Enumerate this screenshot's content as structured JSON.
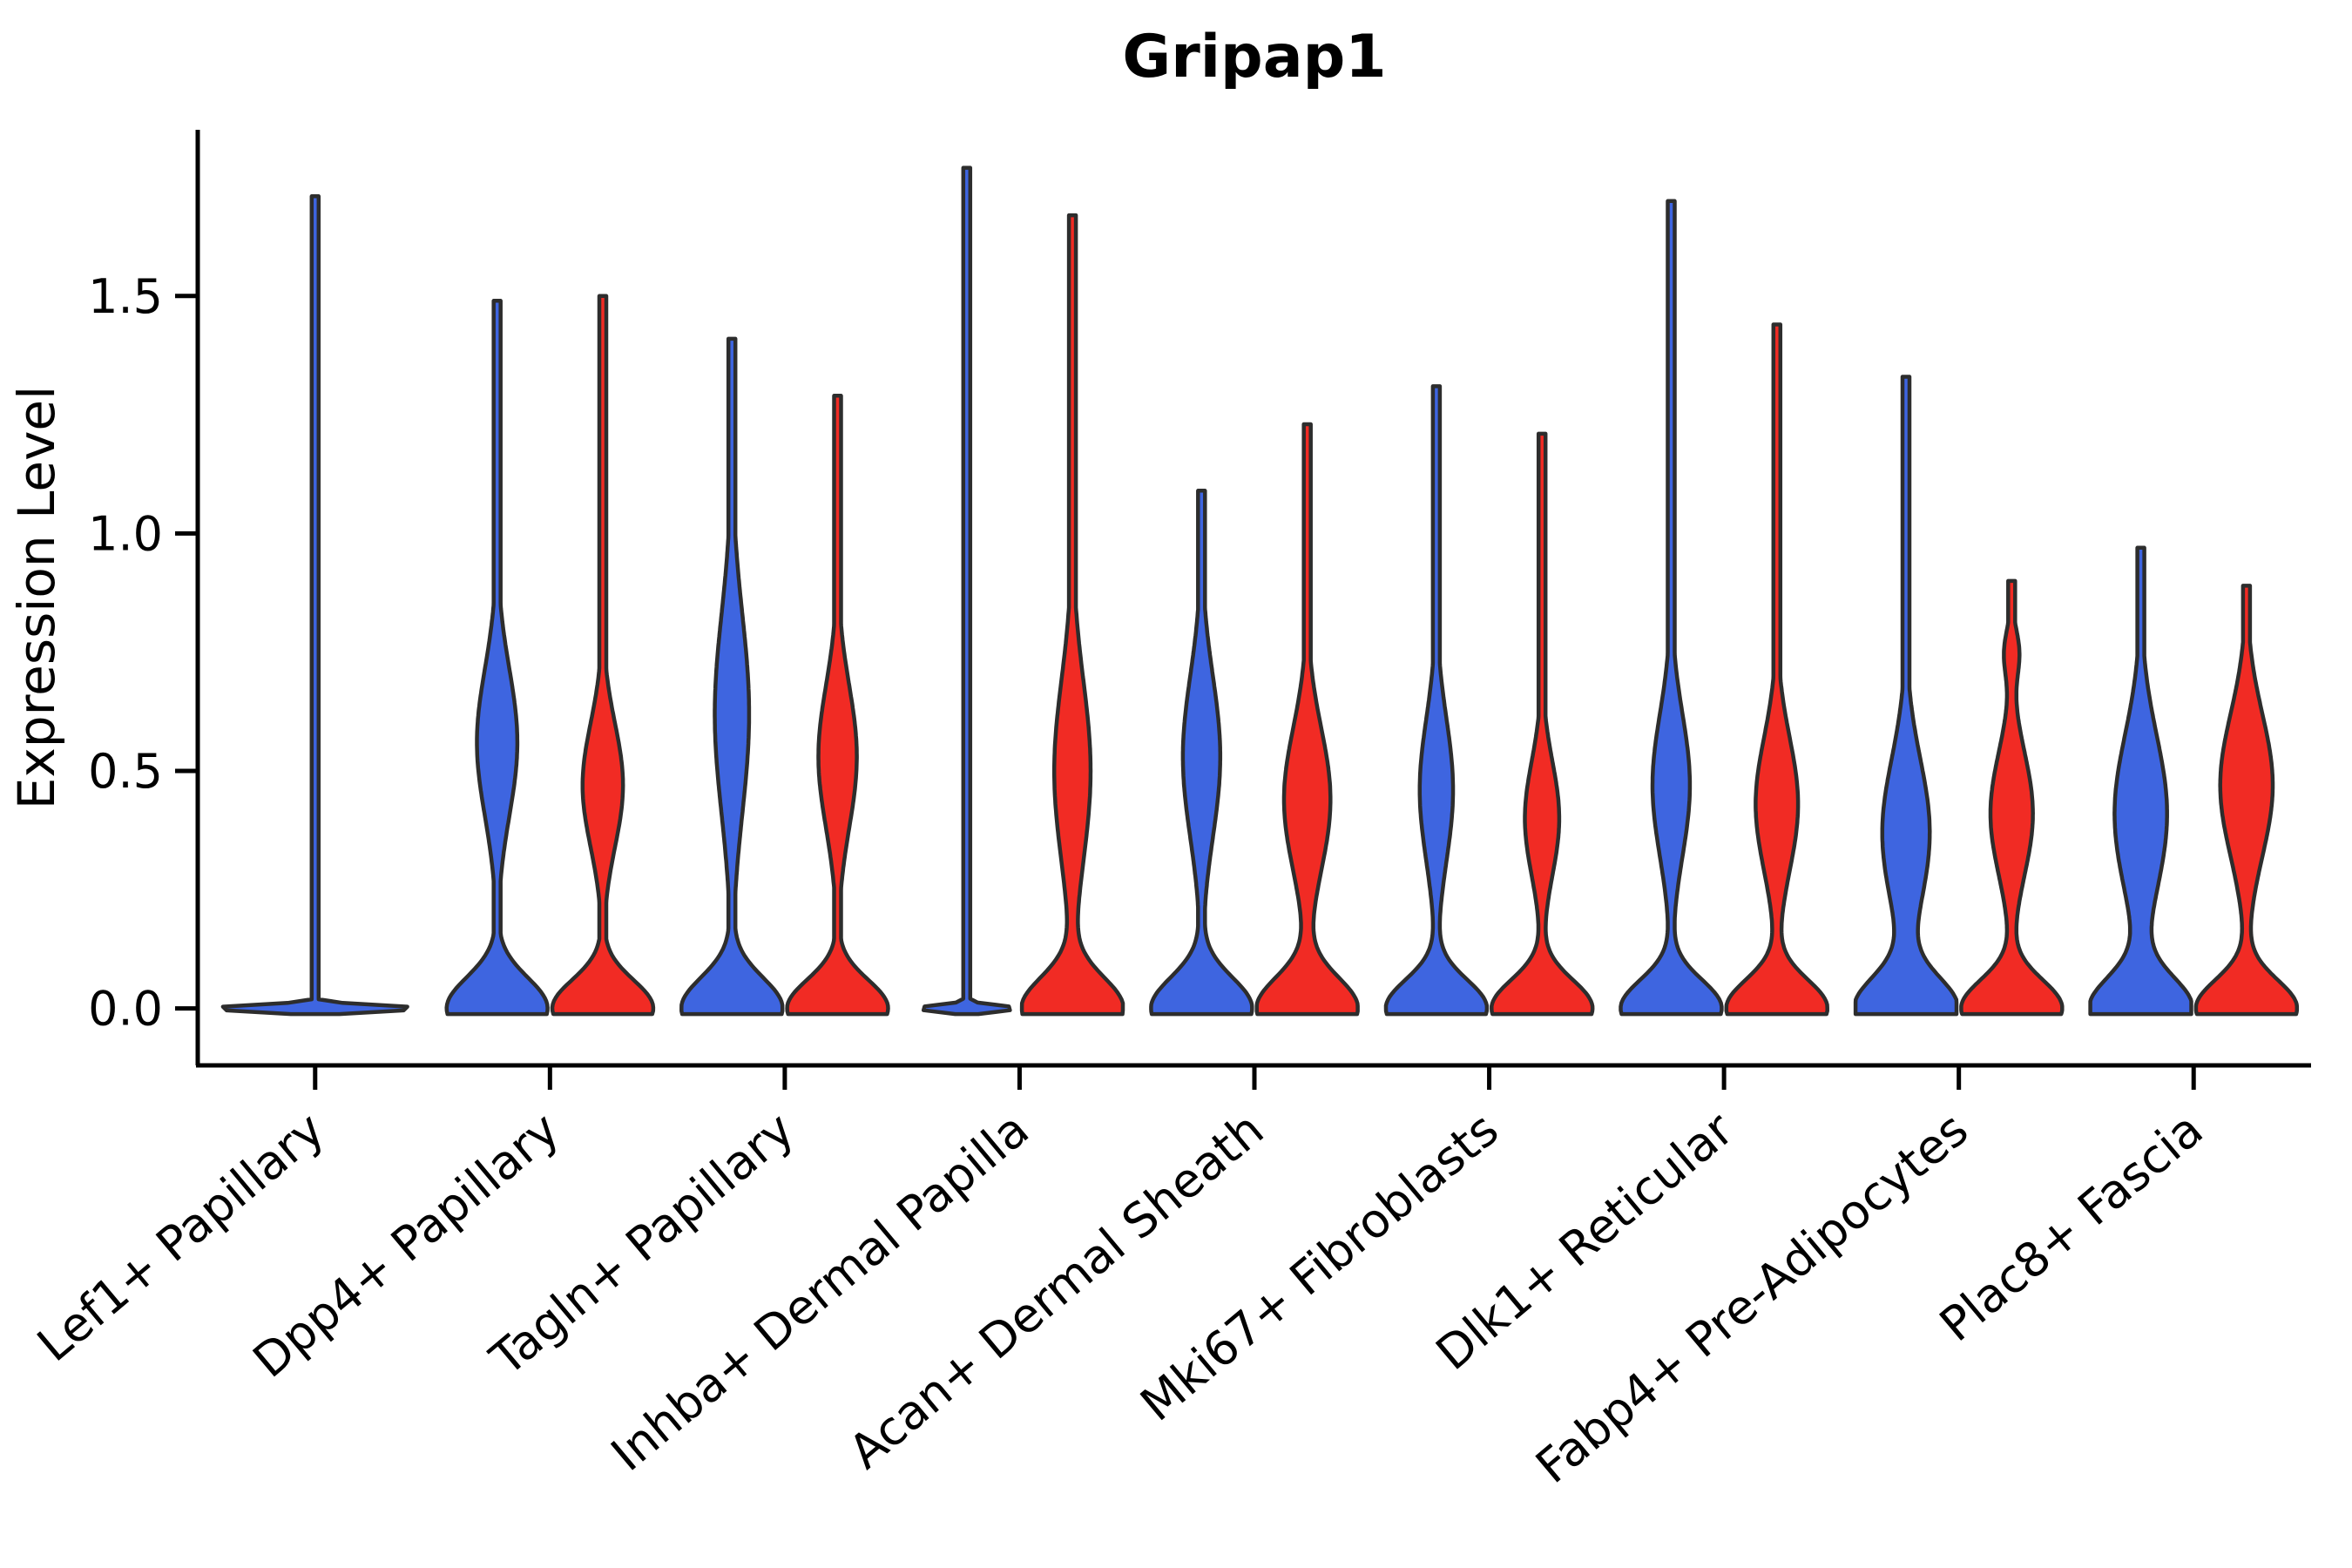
{
  "title": "Gripap1",
  "y_axis": {
    "label": "Expression Level",
    "tick_labels": [
      "0.0",
      "0.5",
      "1.0",
      "1.5"
    ],
    "tick_values": [
      0.0,
      0.5,
      1.0,
      1.5
    ]
  },
  "colors": {
    "blue_fill": "#3e65e0",
    "red_fill": "#f12b24",
    "edge": "#2d2d2d",
    "axis": "#000000"
  },
  "chart_data": {
    "type": "violin",
    "title": "Gripap1",
    "xlabel": "",
    "ylabel": "Expression Level",
    "ylim": [
      -0.12,
      1.85
    ],
    "grid": false,
    "legend": "none",
    "categories": [
      "Lef1+ Papillary",
      "Dpp4+ Papillary",
      "Tagln+ Papillary",
      "Inhba+ Dermal Papilla",
      "Acan+ Dermal Sheath",
      "Mki67+ Fibroblasts",
      "Dlk1+ Reticular",
      "Fabp4+ Pre-Adipocytes",
      "Plac8+ Fascia"
    ],
    "series": [
      {
        "name": "blue",
        "color": "#3e65e0"
      },
      {
        "name": "red",
        "color": "#f12b24"
      }
    ],
    "violins": [
      {
        "category": 0,
        "series": "blue",
        "pos": "full",
        "max": 1.71,
        "flat": true,
        "base_sigma": 0.007,
        "lobe": null
      },
      {
        "category": 1,
        "series": "blue",
        "pos": "left",
        "max": 1.49,
        "flat": false,
        "base_sigma": 0.065,
        "lobe": {
          "c": 0.56,
          "sigma": 0.155,
          "amp": 0.4
        }
      },
      {
        "category": 1,
        "series": "red",
        "pos": "right",
        "max": 1.5,
        "flat": false,
        "base_sigma": 0.06,
        "lobe": {
          "c": 0.47,
          "sigma": 0.13,
          "amp": 0.4
        }
      },
      {
        "category": 2,
        "series": "blue",
        "pos": "left",
        "max": 1.41,
        "flat": false,
        "base_sigma": 0.065,
        "lobe": {
          "c": 0.62,
          "sigma": 0.21,
          "amp": 0.34
        }
      },
      {
        "category": 2,
        "series": "red",
        "pos": "right",
        "max": 1.29,
        "flat": false,
        "base_sigma": 0.06,
        "lobe": {
          "c": 0.53,
          "sigma": 0.15,
          "amp": 0.38
        }
      },
      {
        "category": 3,
        "series": "blue",
        "pos": "left",
        "max": 1.77,
        "flat": true,
        "base_sigma": 0.007,
        "lobe": null
      },
      {
        "category": 3,
        "series": "red",
        "pos": "right",
        "max": 1.67,
        "flat": false,
        "base_sigma": 0.065,
        "lobe": {
          "c": 0.5,
          "sigma": 0.19,
          "amp": 0.36
        }
      },
      {
        "category": 4,
        "series": "blue",
        "pos": "left",
        "max": 1.09,
        "flat": false,
        "base_sigma": 0.065,
        "lobe": {
          "c": 0.53,
          "sigma": 0.17,
          "amp": 0.37
        }
      },
      {
        "category": 4,
        "series": "red",
        "pos": "right",
        "max": 1.23,
        "flat": false,
        "base_sigma": 0.065,
        "lobe": {
          "c": 0.44,
          "sigma": 0.15,
          "amp": 0.46
        }
      },
      {
        "category": 5,
        "series": "blue",
        "pos": "left",
        "max": 1.31,
        "flat": false,
        "base_sigma": 0.06,
        "lobe": {
          "c": 0.46,
          "sigma": 0.15,
          "amp": 0.33
        }
      },
      {
        "category": 5,
        "series": "red",
        "pos": "right",
        "max": 1.21,
        "flat": false,
        "base_sigma": 0.06,
        "lobe": {
          "c": 0.4,
          "sigma": 0.12,
          "amp": 0.34
        }
      },
      {
        "category": 6,
        "series": "blue",
        "pos": "left",
        "max": 1.7,
        "flat": false,
        "base_sigma": 0.06,
        "lobe": {
          "c": 0.47,
          "sigma": 0.15,
          "amp": 0.37
        }
      },
      {
        "category": 6,
        "series": "red",
        "pos": "right",
        "max": 1.44,
        "flat": false,
        "base_sigma": 0.06,
        "lobe": {
          "c": 0.43,
          "sigma": 0.14,
          "amp": 0.42
        }
      },
      {
        "category": 7,
        "series": "blue",
        "pos": "left",
        "max": 1.33,
        "flat": false,
        "base_sigma": 0.065,
        "lobe": {
          "c": 0.37,
          "sigma": 0.155,
          "amp": 0.47
        }
      },
      {
        "category": 7,
        "series": "red",
        "pos": "right",
        "max": 0.9,
        "flat": false,
        "base_sigma": 0.06,
        "lobe": {
          "c": 0.41,
          "sigma": 0.13,
          "amp": 0.42
        },
        "bulge2": {
          "c": 0.75,
          "sigma": 0.05,
          "amp": 0.14
        }
      },
      {
        "category": 8,
        "series": "blue",
        "pos": "left",
        "max": 0.97,
        "flat": false,
        "base_sigma": 0.065,
        "lobe": {
          "c": 0.41,
          "sigma": 0.165,
          "amp": 0.52
        }
      },
      {
        "category": 8,
        "series": "red",
        "pos": "right",
        "max": 0.89,
        "flat": false,
        "base_sigma": 0.06,
        "lobe": {
          "c": 0.47,
          "sigma": 0.15,
          "amp": 0.52
        }
      }
    ]
  }
}
